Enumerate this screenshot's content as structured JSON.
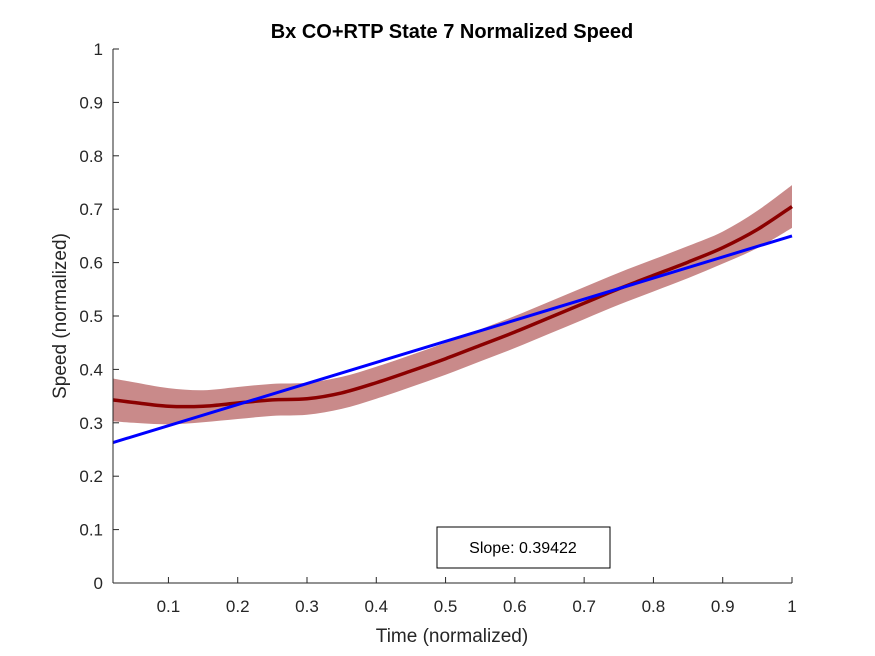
{
  "chart_data": {
    "type": "line",
    "title": "Bx  CO+RTP State 7 Normalized Speed",
    "xlabel": "Time (normalized)",
    "ylabel": "Speed (normalized)",
    "xlim": [
      0.02,
      1.0
    ],
    "ylim": [
      0,
      1
    ],
    "x_ticks": [
      0.1,
      0.2,
      0.3,
      0.4,
      0.5,
      0.6,
      0.7,
      0.8,
      0.9,
      1
    ],
    "x_tick_labels": [
      "0.1",
      "0.2",
      "0.3",
      "0.4",
      "0.5",
      "0.6",
      "0.7",
      "0.8",
      "0.9",
      "1"
    ],
    "y_ticks": [
      0,
      0.1,
      0.2,
      0.3,
      0.4,
      0.5,
      0.6,
      0.7,
      0.8,
      0.9,
      1
    ],
    "y_tick_labels": [
      "0",
      "0.1",
      "0.2",
      "0.3",
      "0.4",
      "0.5",
      "0.6",
      "0.7",
      "0.8",
      "0.9",
      "1"
    ],
    "grid": false,
    "series": [
      {
        "kind": "mean-with-shaded-band",
        "color": "#8B0000",
        "band_color": "#C98A8A",
        "x": [
          0.02,
          0.05,
          0.1,
          0.15,
          0.2,
          0.25,
          0.3,
          0.35,
          0.4,
          0.45,
          0.5,
          0.55,
          0.6,
          0.65,
          0.7,
          0.75,
          0.8,
          0.85,
          0.9,
          0.95,
          1.0
        ],
        "y": [
          0.343,
          0.338,
          0.331,
          0.331,
          0.337,
          0.343,
          0.345,
          0.356,
          0.375,
          0.397,
          0.42,
          0.445,
          0.47,
          0.497,
          0.524,
          0.551,
          0.576,
          0.601,
          0.628,
          0.662,
          0.705
        ],
        "band_half_width": [
          0.04,
          0.038,
          0.034,
          0.03,
          0.03,
          0.03,
          0.03,
          0.03,
          0.03,
          0.03,
          0.03,
          0.03,
          0.03,
          0.03,
          0.03,
          0.03,
          0.03,
          0.03,
          0.03,
          0.035,
          0.04
        ]
      },
      {
        "kind": "linear-fit",
        "color": "#0000FF",
        "x": [
          0.02,
          1.0
        ],
        "y": [
          0.263,
          0.65
        ]
      }
    ],
    "annotation": {
      "text": "Slope: 0.39422"
    }
  }
}
